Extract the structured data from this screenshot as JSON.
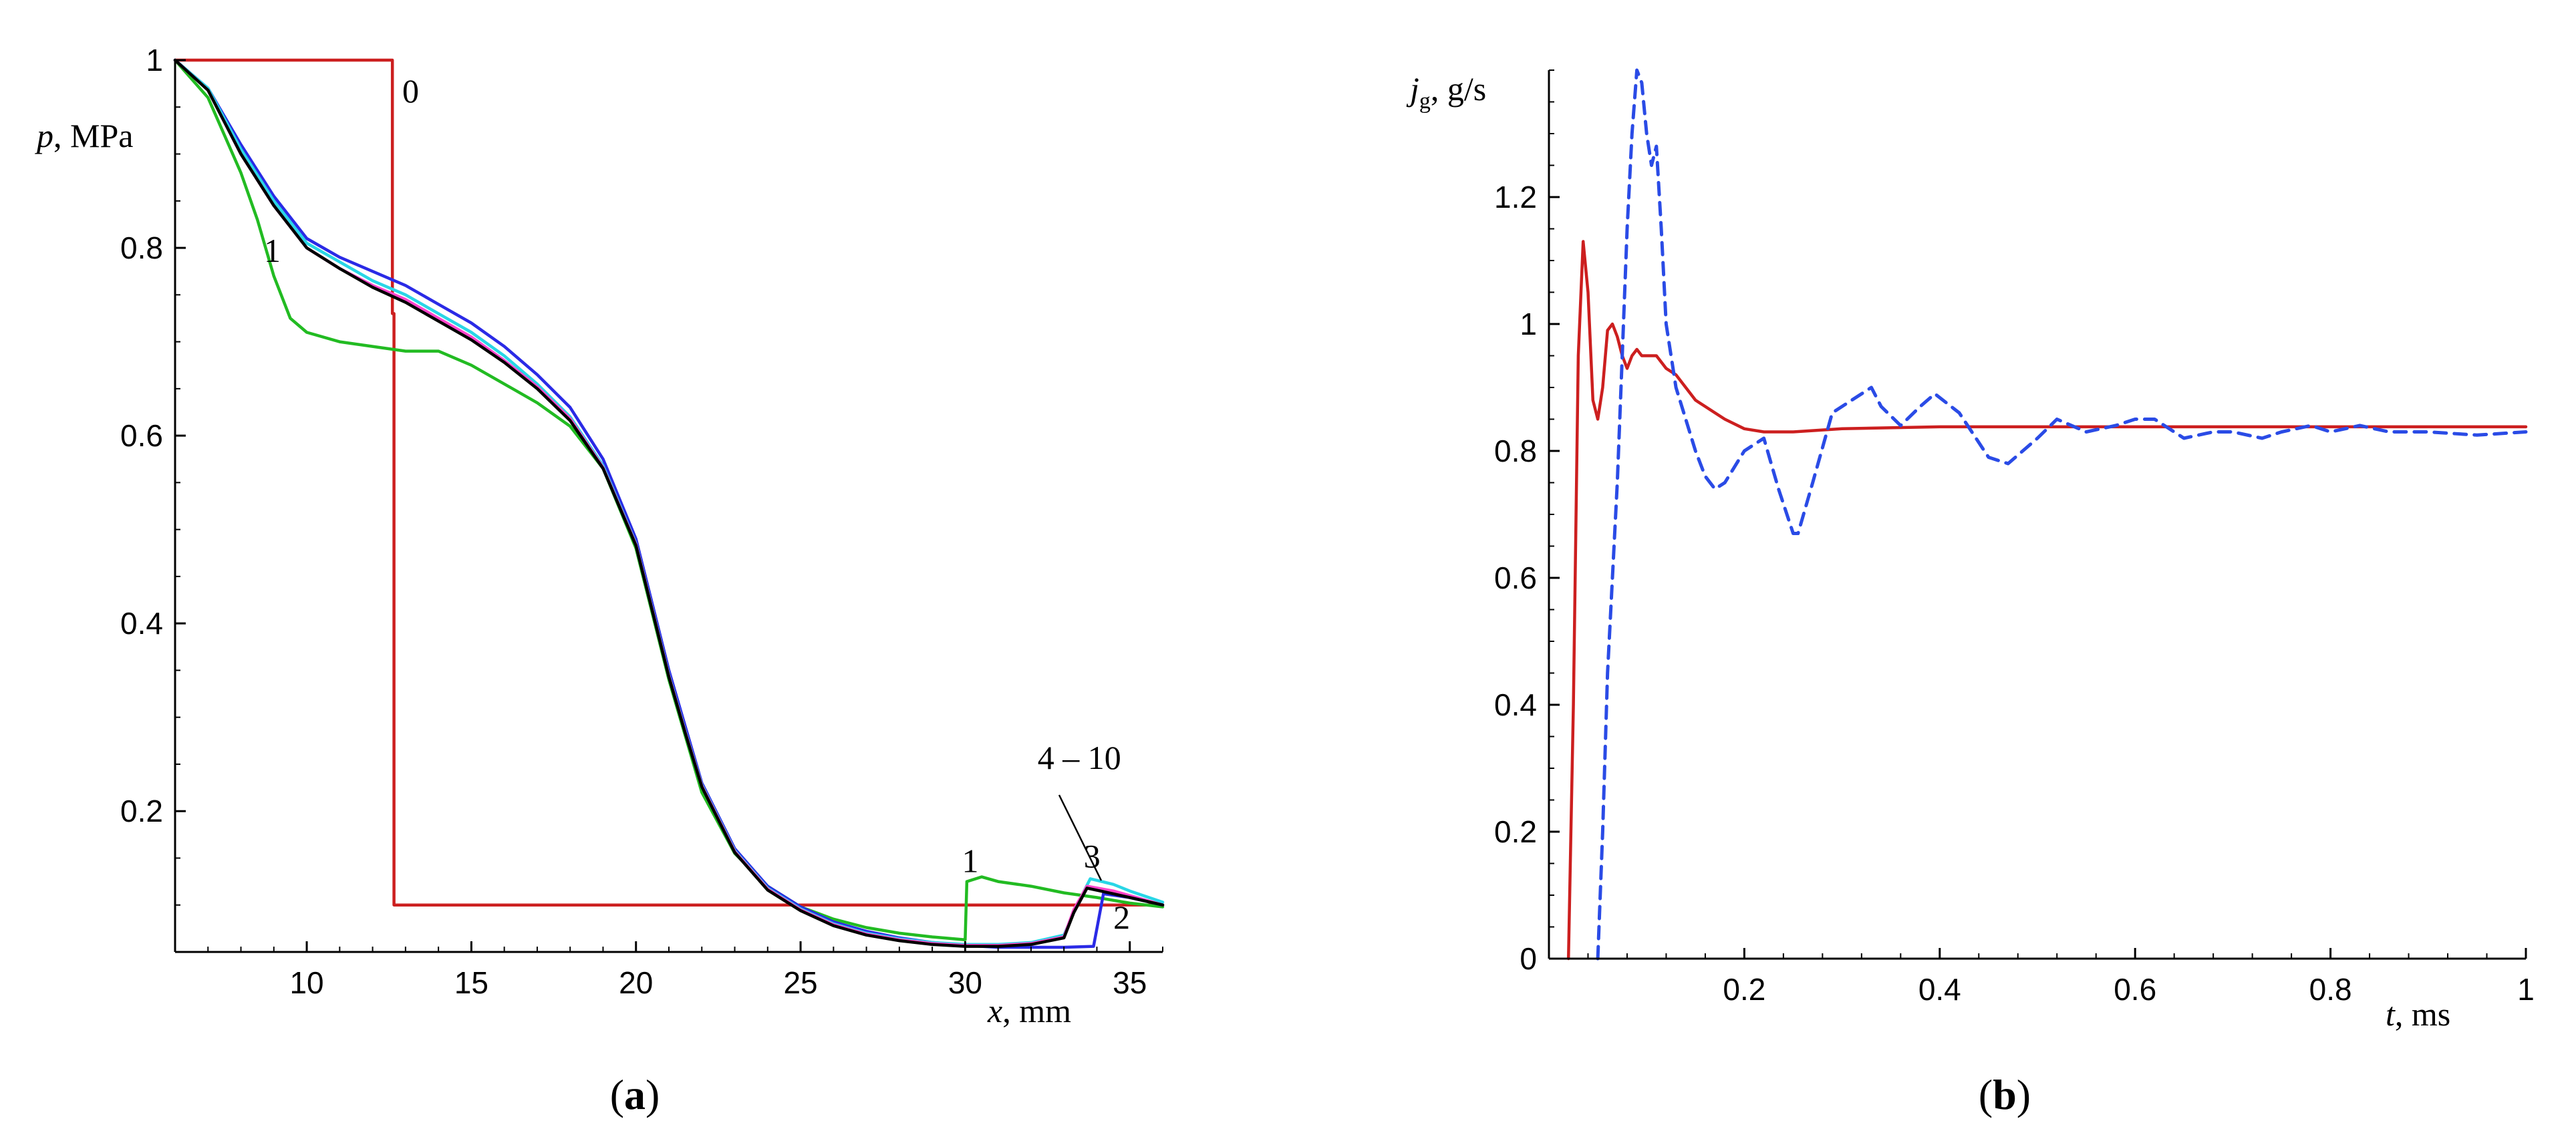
{
  "chart_data": [
    {
      "type": "line",
      "panel_label": "(a)",
      "xlabel": "x, mm",
      "ylabel": "p, MPa",
      "xlim": [
        6,
        36
      ],
      "ylim": [
        0.05,
        1.0
      ],
      "xticks": [
        10,
        15,
        20,
        25,
        30,
        35
      ],
      "yticks": [
        0.2,
        0.4,
        0.6,
        0.8,
        1
      ],
      "grid": false,
      "annotations": [
        {
          "text": "0",
          "x": 12.9,
          "y": 0.955
        },
        {
          "text": "1",
          "x": 8.7,
          "y": 0.785
        },
        {
          "text": "1",
          "x": 29.9,
          "y": 0.135
        },
        {
          "text": "3",
          "x": 33.6,
          "y": 0.14
        },
        {
          "text": "2",
          "x": 34.5,
          "y": 0.075
        },
        {
          "text": "4 – 10",
          "x": 32.2,
          "y": 0.245
        }
      ],
      "series": [
        {
          "name": "0",
          "color": "#cc1f1f",
          "x": [
            6,
            12.6,
            12.6,
            12.65,
            12.65,
            36
          ],
          "y": [
            1.0,
            1.0,
            0.73,
            0.73,
            0.1,
            0.1
          ]
        },
        {
          "name": "1",
          "color": "#22bb22",
          "x": [
            6,
            7,
            8,
            8.5,
            9,
            9.5,
            10,
            11,
            12,
            13,
            14,
            15,
            16,
            17,
            18,
            19,
            20,
            20.5,
            21,
            21.5,
            22,
            23,
            24,
            25,
            26,
            27,
            28,
            29,
            30,
            30.05,
            30.5,
            31,
            32,
            33,
            34,
            35,
            36
          ],
          "y": [
            1.0,
            0.96,
            0.88,
            0.83,
            0.77,
            0.725,
            0.71,
            0.7,
            0.695,
            0.69,
            0.69,
            0.675,
            0.655,
            0.635,
            0.61,
            0.565,
            0.48,
            0.41,
            0.34,
            0.28,
            0.22,
            0.155,
            0.12,
            0.098,
            0.085,
            0.076,
            0.07,
            0.066,
            0.063,
            0.125,
            0.13,
            0.125,
            0.12,
            0.113,
            0.108,
            0.102,
            0.098
          ]
        },
        {
          "name": "2",
          "color": "#2a2ae6",
          "x": [
            6,
            7,
            8,
            9,
            10,
            11,
            12,
            13,
            14,
            15,
            16,
            17,
            18,
            19,
            20,
            20.5,
            21,
            21.5,
            22,
            23,
            24,
            25,
            26,
            27,
            28,
            29,
            30,
            31,
            32,
            33,
            33.9,
            34.2,
            35,
            36
          ],
          "y": [
            1.0,
            0.97,
            0.91,
            0.855,
            0.81,
            0.79,
            0.775,
            0.76,
            0.74,
            0.72,
            0.695,
            0.665,
            0.63,
            0.575,
            0.49,
            0.42,
            0.35,
            0.29,
            0.23,
            0.16,
            0.12,
            0.098,
            0.082,
            0.072,
            0.065,
            0.06,
            0.057,
            0.055,
            0.055,
            0.055,
            0.056,
            0.112,
            0.108,
            0.1
          ]
        },
        {
          "name": "3",
          "color": "#29d6e6",
          "x": [
            6,
            7,
            8,
            9,
            10,
            11,
            12,
            13,
            14,
            15,
            16,
            17,
            18,
            19,
            20,
            20.5,
            21,
            21.5,
            22,
            23,
            24,
            25,
            26,
            27,
            28,
            29,
            30,
            31,
            32,
            33,
            33.4,
            33.8,
            34.5,
            35,
            36
          ],
          "y": [
            1.0,
            0.97,
            0.905,
            0.85,
            0.805,
            0.785,
            0.765,
            0.75,
            0.73,
            0.71,
            0.685,
            0.655,
            0.62,
            0.568,
            0.485,
            0.415,
            0.345,
            0.285,
            0.228,
            0.158,
            0.118,
            0.096,
            0.08,
            0.07,
            0.064,
            0.06,
            0.058,
            0.058,
            0.06,
            0.068,
            0.1,
            0.128,
            0.122,
            0.115,
            0.103
          ]
        },
        {
          "name": "4 – 10 (pink)",
          "color": "#ff44cc",
          "x": [
            6,
            7,
            8,
            9,
            10,
            11,
            12,
            13,
            14,
            15,
            16,
            17,
            18,
            19,
            20,
            20.5,
            21,
            21.5,
            22,
            23,
            24,
            25,
            26,
            27,
            28,
            29,
            30,
            31,
            32,
            33,
            33.3,
            33.7,
            34.5,
            35,
            36
          ],
          "y": [
            1.0,
            0.968,
            0.9,
            0.845,
            0.8,
            0.778,
            0.76,
            0.745,
            0.725,
            0.705,
            0.68,
            0.652,
            0.618,
            0.566,
            0.484,
            0.414,
            0.344,
            0.284,
            0.227,
            0.157,
            0.117,
            0.095,
            0.079,
            0.069,
            0.063,
            0.059,
            0.057,
            0.057,
            0.059,
            0.066,
            0.095,
            0.12,
            0.115,
            0.11,
            0.1
          ]
        },
        {
          "name": "4 – 10 (black)",
          "color": "#000000",
          "x": [
            6,
            7,
            8,
            9,
            10,
            11,
            12,
            13,
            14,
            15,
            16,
            17,
            18,
            19,
            20,
            20.5,
            21,
            21.5,
            22,
            23,
            24,
            25,
            26,
            27,
            28,
            29,
            30,
            31,
            32,
            33,
            33.3,
            33.7,
            34.5,
            35,
            36
          ],
          "y": [
            1.0,
            0.968,
            0.9,
            0.845,
            0.8,
            0.778,
            0.758,
            0.742,
            0.722,
            0.702,
            0.678,
            0.65,
            0.616,
            0.565,
            0.483,
            0.413,
            0.343,
            0.283,
            0.226,
            0.156,
            0.116,
            0.094,
            0.078,
            0.068,
            0.062,
            0.058,
            0.056,
            0.056,
            0.058,
            0.065,
            0.092,
            0.118,
            0.112,
            0.108,
            0.1
          ]
        }
      ]
    },
    {
      "type": "line",
      "panel_label": "(b)",
      "xlabel": "t, ms",
      "ylabel": "jg, g/s",
      "ylabel_main": "j",
      "ylabel_sub": "g",
      "ylabel_rest": ", g/s",
      "xlim": [
        0,
        1
      ],
      "ylim": [
        0,
        1.4
      ],
      "xticks": [
        0.2,
        0.4,
        0.6,
        0.8,
        1
      ],
      "yticks": [
        0,
        0.2,
        0.4,
        0.6,
        0.8,
        1,
        1.2
      ],
      "grid": false,
      "series": [
        {
          "name": "solid",
          "color": "#cc1f1f",
          "dash": false,
          "x": [
            0.02,
            0.025,
            0.03,
            0.035,
            0.04,
            0.045,
            0.05,
            0.055,
            0.06,
            0.065,
            0.07,
            0.075,
            0.08,
            0.085,
            0.09,
            0.095,
            0.1,
            0.11,
            0.12,
            0.13,
            0.14,
            0.15,
            0.16,
            0.17,
            0.18,
            0.2,
            0.22,
            0.25,
            0.3,
            0.4,
            0.5,
            0.6,
            0.7,
            0.8,
            0.9,
            1.0
          ],
          "y": [
            0.0,
            0.4,
            0.95,
            1.13,
            1.05,
            0.88,
            0.85,
            0.9,
            0.99,
            1.0,
            0.98,
            0.95,
            0.93,
            0.95,
            0.96,
            0.95,
            0.95,
            0.95,
            0.93,
            0.92,
            0.9,
            0.88,
            0.87,
            0.86,
            0.85,
            0.835,
            0.83,
            0.83,
            0.835,
            0.838,
            0.838,
            0.838,
            0.838,
            0.838,
            0.838,
            0.838
          ]
        },
        {
          "name": "dashed",
          "color": "#2a4be6",
          "dash": true,
          "x": [
            0.05,
            0.055,
            0.06,
            0.065,
            0.07,
            0.075,
            0.08,
            0.085,
            0.09,
            0.095,
            0.1,
            0.105,
            0.11,
            0.115,
            0.12,
            0.13,
            0.14,
            0.15,
            0.16,
            0.17,
            0.18,
            0.2,
            0.22,
            0.235,
            0.25,
            0.255,
            0.27,
            0.29,
            0.31,
            0.33,
            0.34,
            0.36,
            0.38,
            0.395,
            0.42,
            0.45,
            0.47,
            0.5,
            0.52,
            0.55,
            0.58,
            0.6,
            0.62,
            0.65,
            0.68,
            0.7,
            0.73,
            0.75,
            0.78,
            0.8,
            0.83,
            0.86,
            0.9,
            0.95,
            1.0
          ],
          "y": [
            0.0,
            0.2,
            0.45,
            0.6,
            0.75,
            0.95,
            1.15,
            1.3,
            1.4,
            1.38,
            1.3,
            1.25,
            1.28,
            1.15,
            1.0,
            0.9,
            0.85,
            0.8,
            0.76,
            0.74,
            0.75,
            0.8,
            0.82,
            0.74,
            0.67,
            0.67,
            0.75,
            0.86,
            0.88,
            0.9,
            0.87,
            0.84,
            0.87,
            0.89,
            0.86,
            0.79,
            0.78,
            0.82,
            0.85,
            0.83,
            0.84,
            0.85,
            0.85,
            0.82,
            0.83,
            0.83,
            0.82,
            0.83,
            0.84,
            0.83,
            0.84,
            0.83,
            0.83,
            0.825,
            0.83
          ]
        }
      ]
    }
  ]
}
